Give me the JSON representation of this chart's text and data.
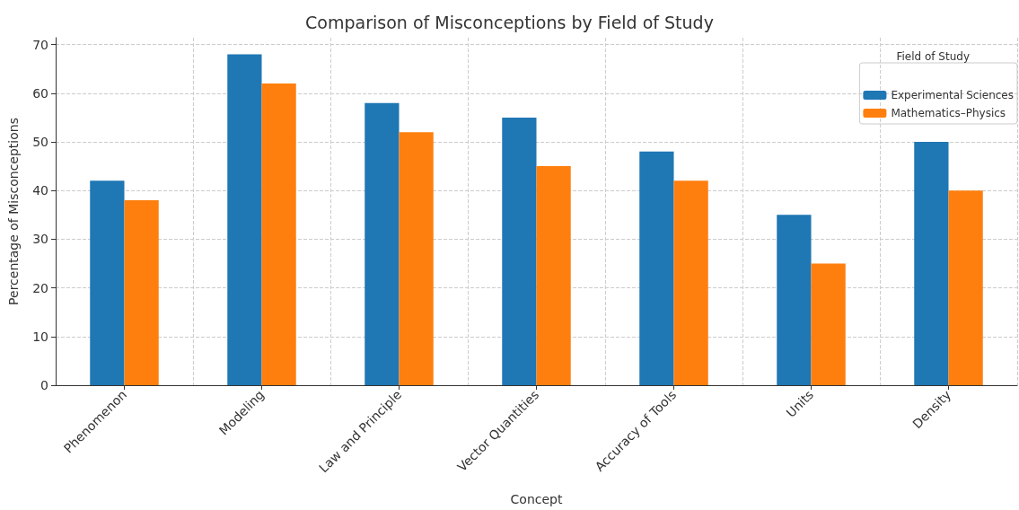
{
  "chart_data": {
    "type": "bar",
    "title": "Comparison of Misconceptions by Field of Study",
    "xlabel": "Concept",
    "ylabel": "Percentage of Misconceptions",
    "legend_title": "Field of Study",
    "categories": [
      "Phenomenon",
      "Modeling",
      "Law and Principle",
      "Vector Quantities",
      "Accuracy of Tools",
      "Units",
      "Density"
    ],
    "series": [
      {
        "name": "Experimental Sciences",
        "color": "#1f77b4",
        "values": [
          42,
          68,
          58,
          55,
          48,
          35,
          50
        ]
      },
      {
        "name": "Mathematics–Physics",
        "color": "#ff7f0e",
        "values": [
          38,
          62,
          52,
          45,
          42,
          25,
          40
        ]
      }
    ],
    "ylim": [
      0,
      71.4
    ],
    "yticks": [
      0,
      10,
      20,
      30,
      40,
      50,
      60,
      70
    ],
    "grid": true,
    "legend": "top right"
  }
}
